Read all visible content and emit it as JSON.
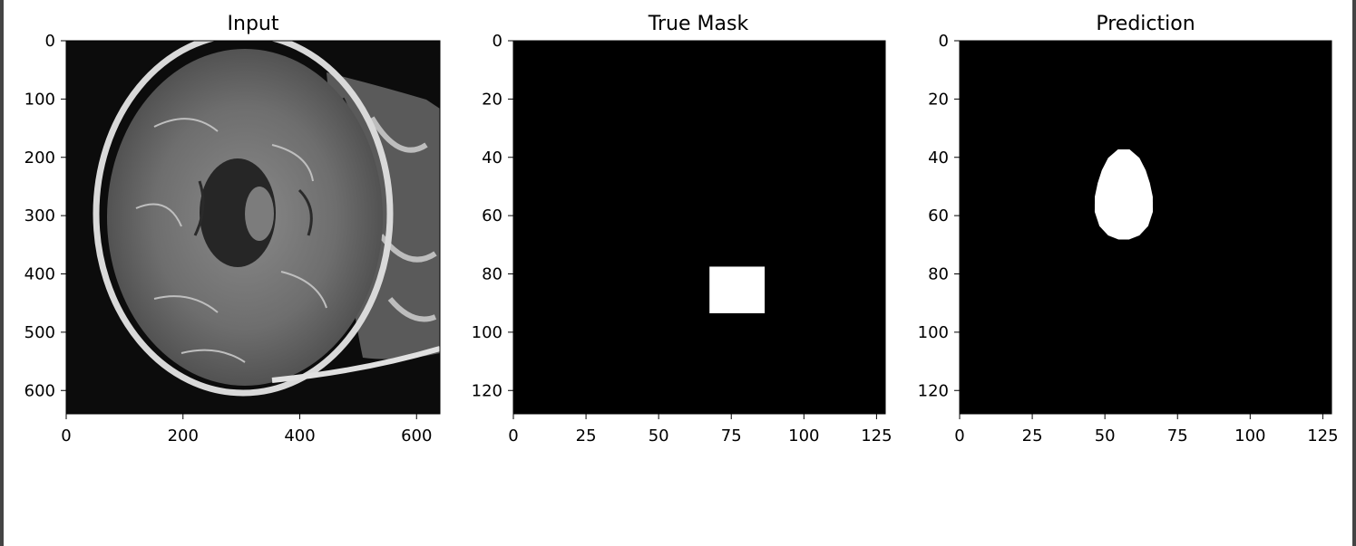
{
  "chart_data": [
    {
      "type": "heatmap",
      "title": "Input",
      "xlabel": "",
      "ylabel": "",
      "xlim": [
        0,
        640
      ],
      "ylim": [
        640,
        0
      ],
      "x_ticks": [
        0,
        200,
        400,
        600
      ],
      "y_ticks": [
        0,
        100,
        200,
        300,
        400,
        500,
        600
      ],
      "colormap": "gray",
      "content": "brain MRI slice"
    },
    {
      "type": "heatmap",
      "title": "True Mask",
      "xlabel": "",
      "ylabel": "",
      "xlim": [
        0,
        128
      ],
      "ylim": [
        128,
        0
      ],
      "x_ticks": [
        0,
        25,
        50,
        75,
        100,
        125
      ],
      "y_ticks": [
        0,
        20,
        40,
        60,
        80,
        100,
        120
      ],
      "colormap": "gray",
      "mask_rect": {
        "x0": 67.5,
        "x1": 86.5,
        "y0": 77.5,
        "y1": 93.5
      }
    },
    {
      "type": "heatmap",
      "title": "Prediction",
      "xlabel": "",
      "ylabel": "",
      "xlim": [
        0,
        128
      ],
      "ylim": [
        128,
        0
      ],
      "x_ticks": [
        0,
        25,
        50,
        75,
        100,
        125
      ],
      "y_ticks": [
        0,
        20,
        40,
        60,
        80,
        100,
        120
      ],
      "colormap": "gray",
      "mask_blob": {
        "cx": 56.5,
        "cy": 53.5,
        "rx": 10.5,
        "ry": 15
      }
    }
  ],
  "colors": {
    "mask": "#ffffff",
    "background": "#000000",
    "axis": "#000000"
  }
}
